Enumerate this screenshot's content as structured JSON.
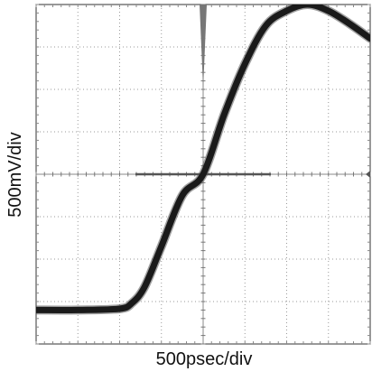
{
  "chart_data": {
    "type": "line",
    "xlabel": "500psec/div",
    "ylabel": "500mV/div",
    "x_divisions": 8,
    "y_divisions": 8,
    "grid": true,
    "grid_style": "dotted",
    "trace_color": "#1a1a1a",
    "trigger_marker_color": "#777777",
    "zero_line_color": "#555555",
    "center_division": [
      4,
      4
    ],
    "series": [
      {
        "points_div": [
          [
            0.0,
            0.8
          ],
          [
            1.0,
            0.8
          ],
          [
            2.0,
            0.83
          ],
          [
            2.3,
            0.97
          ],
          [
            2.6,
            1.35
          ],
          [
            3.0,
            2.3
          ],
          [
            3.5,
            3.5
          ],
          [
            4.0,
            4.0
          ],
          [
            4.5,
            5.4
          ],
          [
            5.0,
            6.6
          ],
          [
            5.5,
            7.5
          ],
          [
            6.0,
            7.85
          ],
          [
            6.5,
            8.0
          ],
          [
            7.0,
            7.85
          ],
          [
            7.5,
            7.55
          ],
          [
            8.0,
            7.2
          ]
        ]
      }
    ]
  }
}
